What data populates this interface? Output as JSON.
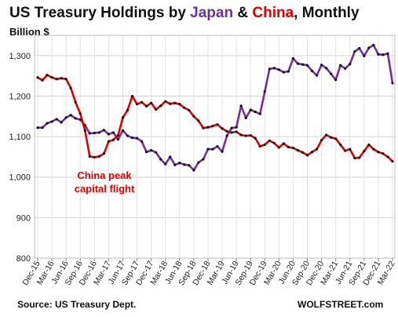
{
  "header": {
    "title_part1": "US Treasury Holdings by ",
    "title_japan": "Japan",
    "title_amp": " & ",
    "title_china": "China",
    "title_part2": ", Monthly",
    "unit": "Billion $"
  },
  "footer": {
    "source": "Source: US Treasury Dept.",
    "brand": "WOLFSTREET.com"
  },
  "annotation": {
    "line1": "China peak",
    "line2": "capital flight"
  },
  "chart_data": {
    "type": "line",
    "ylim": [
      800,
      1350
    ],
    "yticks": [
      "800",
      "900",
      "1,000",
      "1,100",
      "1,200",
      "1,300"
    ],
    "ytick_values": [
      800,
      900,
      1000,
      1100,
      1200,
      1300
    ],
    "grid": true,
    "x": [
      "Dec-15",
      "Jan-16",
      "Feb-16",
      "Mar-16",
      "Apr-16",
      "May-16",
      "Jun-16",
      "Jul-16",
      "Aug-16",
      "Sep-16",
      "Oct-16",
      "Nov-16",
      "Dec-16",
      "Jan-17",
      "Feb-17",
      "Mar-17",
      "Apr-17",
      "May-17",
      "Jun-17",
      "Jul-17",
      "Aug-17",
      "Sep-17",
      "Oct-17",
      "Nov-17",
      "Dec-17",
      "Jan-18",
      "Feb-18",
      "Mar-18",
      "Apr-18",
      "May-18",
      "Jun-18",
      "Jul-18",
      "Aug-18",
      "Sep-18",
      "Oct-18",
      "Nov-18",
      "Dec-18",
      "Jan-19",
      "Feb-19",
      "Mar-19",
      "Apr-19",
      "May-19",
      "Jun-19",
      "Jul-19",
      "Aug-19",
      "Sep-19",
      "Oct-19",
      "Nov-19",
      "Dec-19",
      "Jan-20",
      "Feb-20",
      "Mar-20",
      "Apr-20",
      "May-20",
      "Jun-20",
      "Jul-20",
      "Aug-20",
      "Sep-20",
      "Oct-20",
      "Nov-20",
      "Dec-20",
      "Jan-21",
      "Feb-21",
      "Mar-21",
      "Apr-21",
      "May-21",
      "Jun-21",
      "Jul-21",
      "Aug-21",
      "Sep-21",
      "Oct-21",
      "Nov-21",
      "Dec-21",
      "Jan-22",
      "Feb-22",
      "Mar-22"
    ],
    "xtick_labels": [
      "Dec-15",
      "Mar-16",
      "Jun-16",
      "Sep-16",
      "Dec-16",
      "Mar-17",
      "Jun-17",
      "Sep-17",
      "Dec-17",
      "Mar-18",
      "Jun-18",
      "Sep-18",
      "Dec-18",
      "Mar-19",
      "Jun-19",
      "Sep-19",
      "Dec-19",
      "Mar-20",
      "Jun-20",
      "Sep-20",
      "Dec-20",
      "Mar-21",
      "Jun-21",
      "Sep-21",
      "Dec-21",
      "Mar-22"
    ],
    "series": [
      {
        "name": "Japan",
        "color": "#7030a0",
        "values": [
          1122,
          1122,
          1133,
          1137,
          1143,
          1135,
          1147,
          1153,
          1145,
          1142,
          1128,
          1108,
          1109,
          1110,
          1116,
          1106,
          1110,
          1093,
          1115,
          1102,
          1097,
          1096,
          1088,
          1062,
          1066,
          1061,
          1044,
          1032,
          1050,
          1030,
          1035,
          1031,
          1029,
          1017,
          1036,
          1044,
          1069,
          1069,
          1076,
          1063,
          1102,
          1121,
          1123,
          1176,
          1146,
          1166,
          1161,
          1156,
          1211,
          1267,
          1269,
          1265,
          1259,
          1261,
          1293,
          1280,
          1278,
          1276,
          1262,
          1251,
          1277,
          1269,
          1255,
          1240,
          1276,
          1268,
          1279,
          1310,
          1318,
          1299,
          1319,
          1326,
          1303,
          1302,
          1305,
          1232
        ]
      },
      {
        "name": "China",
        "color": "#e00000",
        "values": [
          1246,
          1239,
          1252,
          1246,
          1242,
          1244,
          1242,
          1220,
          1185,
          1157,
          1115,
          1051,
          1049,
          1051,
          1058,
          1088,
          1092,
          1103,
          1147,
          1165,
          1200,
          1180,
          1185,
          1175,
          1183,
          1167,
          1176,
          1187,
          1181,
          1183,
          1180,
          1171,
          1165,
          1150,
          1139,
          1121,
          1123,
          1126,
          1130,
          1120,
          1113,
          1110,
          1112,
          1104,
          1102,
          1103,
          1096,
          1076,
          1080,
          1090,
          1084,
          1073,
          1083,
          1074,
          1072,
          1066,
          1061,
          1054,
          1062,
          1069,
          1091,
          1104,
          1098,
          1095,
          1080,
          1065,
          1069,
          1047,
          1048,
          1064,
          1080,
          1069,
          1062,
          1058,
          1050,
          1039
        ]
      }
    ]
  }
}
